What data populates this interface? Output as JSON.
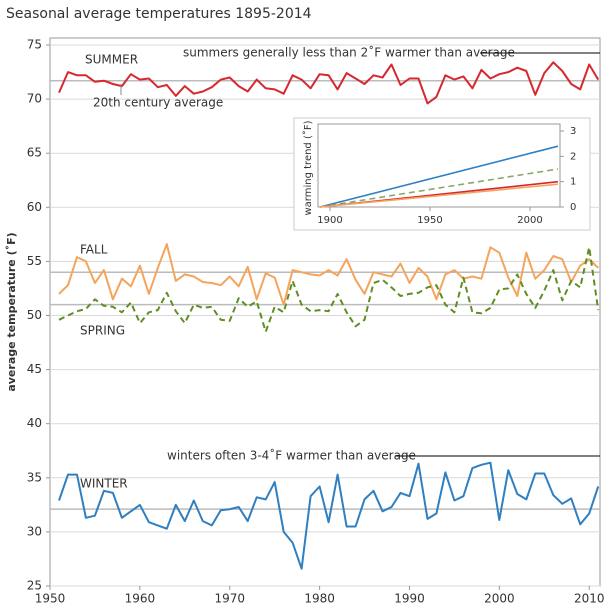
{
  "chart_data": [
    {
      "type": "line",
      "title": "Seasonal average temperatures 1895-2014",
      "ylabel": "average temperature (˚F)",
      "x": [
        1951,
        1952,
        1953,
        1954,
        1955,
        1956,
        1957,
        1958,
        1959,
        1960,
        1961,
        1962,
        1963,
        1964,
        1965,
        1966,
        1967,
        1968,
        1969,
        1970,
        1971,
        1972,
        1973,
        1974,
        1975,
        1976,
        1977,
        1978,
        1979,
        1980,
        1981,
        1982,
        1983,
        1984,
        1985,
        1986,
        1987,
        1988,
        1989,
        1990,
        1991,
        1992,
        1993,
        1994,
        1995,
        1996,
        1997,
        1998,
        1999,
        2000,
        2001,
        2002,
        2003,
        2004,
        2005,
        2006,
        2007,
        2008,
        2009,
        2010,
        2011
      ],
      "xlim": [
        1950,
        2011.2
      ],
      "xticks": [
        1950,
        1960,
        1970,
        1980,
        1990,
        2000,
        2010
      ],
      "ylim": [
        25,
        75
      ],
      "yticks": [
        25,
        30,
        35,
        40,
        45,
        50,
        55,
        60,
        65,
        70,
        75
      ],
      "grid": true,
      "average_label": "20th century average",
      "annotations": [
        "summers generally less than 2˚F warmer than average",
        "winters often 3-4˚F warmer than average"
      ],
      "series": [
        {
          "name": "SUMMER",
          "color": "#d7282f",
          "average": 71.7,
          "values": [
            70.6,
            72.5,
            72.2,
            72.2,
            71.6,
            71.7,
            71.4,
            71.2,
            72.3,
            71.8,
            71.9,
            71.1,
            71.3,
            70.3,
            71.2,
            70.5,
            70.7,
            71.1,
            71.8,
            72.0,
            71.2,
            70.7,
            71.8,
            71.0,
            70.9,
            70.5,
            72.2,
            71.8,
            71.0,
            72.3,
            72.2,
            70.9,
            72.4,
            71.9,
            71.4,
            72.2,
            72.0,
            73.2,
            71.3,
            71.9,
            71.9,
            69.6,
            70.2,
            72.2,
            71.8,
            72.1,
            71.0,
            72.7,
            71.9,
            72.3,
            72.5,
            72.9,
            72.6,
            70.4,
            72.4,
            73.4,
            72.6,
            71.4,
            70.9,
            73.2,
            71.8
          ]
        },
        {
          "name": "FALL",
          "color": "#f5a45c",
          "average": 54.0,
          "values": [
            52.0,
            52.8,
            55.4,
            55.0,
            53.0,
            54.2,
            51.5,
            53.4,
            52.7,
            54.6,
            52.0,
            54.4,
            56.6,
            53.2,
            53.8,
            53.6,
            53.1,
            53.0,
            52.8,
            53.6,
            52.7,
            54.5,
            51.5,
            53.9,
            53.5,
            51.0,
            54.2,
            54.0,
            53.8,
            53.7,
            54.2,
            53.7,
            55.2,
            53.3,
            52.0,
            54.0,
            53.8,
            53.6,
            54.8,
            53.0,
            54.4,
            53.6,
            51.5,
            53.8,
            54.2,
            53.4,
            53.6,
            53.4,
            56.3,
            55.8,
            53.5,
            51.8,
            55.8,
            53.4,
            54.2,
            55.5,
            55.2,
            53.1,
            54.6,
            55.2,
            54.4
          ]
        },
        {
          "name": "SPRING",
          "color": "#5f8f22",
          "dashed": true,
          "average": 51.0,
          "values": [
            49.6,
            50.0,
            50.4,
            50.6,
            51.5,
            50.9,
            50.8,
            50.3,
            51.2,
            49.3,
            50.3,
            50.5,
            52.1,
            50.4,
            49.3,
            51.0,
            50.7,
            50.8,
            49.6,
            49.5,
            51.6,
            50.8,
            51.3,
            48.5,
            50.8,
            50.3,
            53.2,
            51.0,
            50.4,
            50.5,
            50.4,
            52.0,
            50.3,
            49.0,
            49.6,
            53.0,
            53.3,
            52.6,
            51.8,
            52.0,
            52.1,
            52.6,
            52.8,
            51.0,
            50.3,
            53.5,
            50.3,
            50.2,
            50.7,
            52.4,
            52.5,
            53.8,
            52.0,
            50.7,
            52.3,
            54.2,
            51.4,
            53.2,
            52.6,
            56.3,
            50.5
          ]
        },
        {
          "name": "WINTER",
          "color": "#2f7fc1",
          "average": 32.1,
          "values": [
            32.9,
            35.3,
            35.3,
            31.3,
            31.5,
            33.8,
            33.6,
            31.3,
            31.9,
            32.5,
            30.9,
            30.6,
            30.3,
            32.5,
            31.0,
            32.9,
            31.0,
            30.6,
            32.0,
            32.1,
            32.3,
            31.0,
            33.2,
            33.0,
            34.6,
            30.0,
            29.0,
            26.6,
            33.3,
            34.2,
            30.9,
            35.3,
            30.5,
            30.5,
            33.0,
            33.8,
            31.9,
            32.3,
            33.6,
            33.3,
            36.3,
            31.2,
            31.7,
            35.5,
            32.9,
            33.3,
            35.9,
            36.2,
            36.4,
            31.1,
            35.7,
            33.5,
            33.0,
            35.4,
            35.4,
            33.4,
            32.6,
            33.1,
            30.7,
            31.7,
            34.2
          ]
        }
      ]
    },
    {
      "type": "line",
      "ylabel": "warming trend (˚F)",
      "x": [
        1895,
        2014
      ],
      "xlim": [
        1894,
        2015
      ],
      "xticks": [
        1900,
        1950,
        2000
      ],
      "ylim": [
        0,
        3
      ],
      "yticks": [
        0,
        1,
        2,
        3
      ],
      "series": [
        {
          "color": "#2f7fc1",
          "values": [
            0,
            2.4
          ]
        },
        {
          "color": "#8aa86a",
          "dashed": true,
          "values": [
            0,
            1.5
          ]
        },
        {
          "color": "#d7282f",
          "values": [
            0,
            1.0
          ]
        },
        {
          "color": "#f5a45c",
          "values": [
            0,
            0.9
          ]
        }
      ]
    }
  ]
}
